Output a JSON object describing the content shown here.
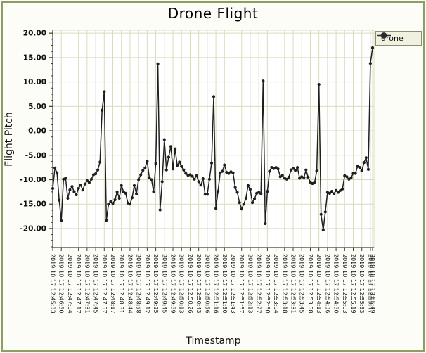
{
  "title": "Drone Flight",
  "legend": {
    "series_label": "drone"
  },
  "axes": {
    "y_title": "Flight Pitch",
    "x_title": "Timestamp"
  },
  "colors": {
    "background": "#fdfdf8",
    "outer_border": "#8d9e64",
    "plot_background": "#ffffff",
    "gridline": "#d9dcbc",
    "axis_line": "#3c3c28",
    "series_line": "#1f1f1f",
    "legend_background": "#f0f1de",
    "legend_border": "#8c8c77",
    "text": "#111111"
  },
  "chart_data": {
    "type": "line",
    "title": "Drone Flight",
    "xlabel": "Timestamp",
    "ylabel": "Flight Pitch",
    "ylim": [
      -23.9,
      20.6
    ],
    "y_major_ticks": [
      20,
      15,
      10,
      5,
      0,
      -5,
      -10,
      -15,
      -20
    ],
    "y_minor_step": 1.25,
    "grid": true,
    "legend_position": "top-right-outside",
    "x_tick_labels": [
      "2019:10:17 12:45:33",
      "2019:10:17 12:46:50",
      "2019:10:17 12:47:04",
      "2019:10:17 12:47:17",
      "2019:10:17 12:47:31",
      "2019:10:17 12:47:45",
      "2019:10:17 12:47:57",
      "2019:10:17 12:48:17",
      "2019:10:17 12:48:31",
      "2019:10:17 12:48:44",
      "2019:10:17 12:48:58",
      "2019:10:17 12:49:12",
      "2019:10:17 12:49:25",
      "2019:10:17 12:49:45",
      "2019:10:17 12:49:59",
      "2019:10:17 12:50:13",
      "2019:10:17 12:50:26",
      "2019:10:17 12:50:43",
      "2019:10:17 12:50:56",
      "2019:10:17 12:51:16",
      "2019:10:17 12:51:30",
      "2019:10:17 12:51:43",
      "2019:10:17 12:51:57",
      "2019:10:17 12:52:13",
      "2019:10:17 12:52:27",
      "2019:10:17 12:52:50",
      "2019:10:17 12:53:04",
      "2019:10:17 12:53:18",
      "2019:10:17 12:53:31",
      "2019:10:17 12:53:45",
      "2019:10:17 12:53:58",
      "2019:10:17 12:54:13",
      "2019:10:17 12:54:36",
      "2019:10:17 12:54:50",
      "2019:10:17 12:55:03",
      "2019:10:17 12:55:19",
      "2019:10:17 12:55:33",
      "2019:10:17 12:55:47",
      "2019:10:17 12:55:49"
    ],
    "x_tick_point_indices": [
      0,
      4,
      8,
      12,
      16,
      20,
      24,
      28,
      32,
      36,
      40,
      44,
      48,
      52,
      56,
      60,
      64,
      68,
      72,
      76,
      80,
      84,
      88,
      92,
      96,
      100,
      104,
      108,
      112,
      116,
      120,
      124,
      128,
      132,
      136,
      140,
      144,
      148,
      149
    ],
    "series": [
      {
        "name": "drone",
        "color": "#1f1f1f",
        "values": [
          -11.8,
          -7.6,
          -8.6,
          -14.2,
          -18.4,
          -9.9,
          -9.7,
          -13.8,
          -12.1,
          -11.4,
          -12.5,
          -13.1,
          -11.8,
          -11.1,
          -12.1,
          -10.9,
          -10.2,
          -10.6,
          -9.9,
          -9.0,
          -8.8,
          -8.0,
          -6.4,
          4.2,
          8.0,
          -18.3,
          -15.0,
          -14.5,
          -14.9,
          -14.1,
          -12.5,
          -13.8,
          -11.2,
          -12.5,
          -12.8,
          -14.8,
          -15.0,
          -13.7,
          -11.2,
          -12.9,
          -10.0,
          -9.0,
          -8.1,
          -7.6,
          -6.2,
          -9.6,
          -10.0,
          -12.5,
          -6.7,
          13.7,
          -16.2,
          -10.4,
          -1.8,
          -8.0,
          -5.4,
          -3.2,
          -7.8,
          -3.7,
          -7.1,
          -6.4,
          -7.3,
          -8.0,
          -8.7,
          -9.1,
          -9.0,
          -9.3,
          -9.9,
          -9.2,
          -10.4,
          -11.1,
          -9.8,
          -13.0,
          -13.0,
          -9.9,
          -6.6,
          7.0,
          -15.9,
          -12.4,
          -8.6,
          -8.3,
          -7.0,
          -8.5,
          -8.7,
          -8.4,
          -8.6,
          -11.6,
          -12.6,
          -14.7,
          -16.0,
          -15.0,
          -13.8,
          -11.2,
          -12.0,
          -14.7,
          -13.9,
          -12.8,
          -12.6,
          -12.9,
          10.2,
          -19.0,
          -12.4,
          -8.3,
          -7.5,
          -7.7,
          -7.5,
          -7.8,
          -9.4,
          -9.1,
          -9.7,
          -9.9,
          -9.5,
          -8.0,
          -7.7,
          -8.1,
          -7.5,
          -9.7,
          -9.4,
          -9.6,
          -8.0,
          -9.5,
          -10.5,
          -10.8,
          -10.5,
          -8.2,
          9.5,
          -17.1,
          -20.3,
          -16.6,
          -12.6,
          -12.8,
          -12.4,
          -12.9,
          -12.2,
          -12.6,
          -12.2,
          -11.9,
          -9.2,
          -9.4,
          -9.9,
          -9.6,
          -8.7,
          -8.7,
          -7.3,
          -7.5,
          -8.2,
          -6.5,
          -5.5,
          -7.9,
          13.8,
          17.0
        ]
      }
    ]
  }
}
